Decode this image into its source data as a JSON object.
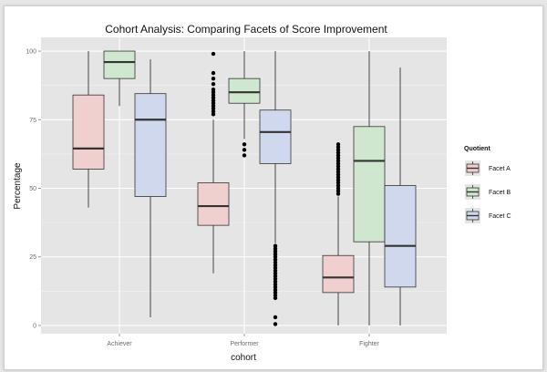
{
  "chart_data": {
    "type": "boxplot",
    "title": "Cohort Analysis: Comparing Facets of Score Improvement",
    "xlabel": "cohort",
    "ylabel": "Percentage",
    "ylim": [
      -3,
      105
    ],
    "yticks": [
      0,
      25,
      50,
      75,
      100
    ],
    "categories": [
      "Achiever",
      "Performer",
      "Fighter"
    ],
    "legend": {
      "title": "Quotient",
      "position": "right",
      "entries": [
        "Facet A",
        "Facet B",
        "Facet C"
      ]
    },
    "colors": {
      "panel": "#e5e5e5",
      "grid_major": "#ffffff",
      "grid_minor": "#f2f2f2",
      "line": "#333333",
      "fills": [
        "#f0cfcf",
        "#cfe6cf",
        "#cfd8ec"
      ]
    },
    "series": [
      {
        "name": "Facet A",
        "boxes": [
          {
            "category": "Achiever",
            "min": 43,
            "q1": 57,
            "median": 64.5,
            "q3": 84,
            "max": 100,
            "outliers": []
          },
          {
            "category": "Performer",
            "min": 19,
            "q1": 36.5,
            "median": 43.5,
            "q3": 52,
            "max": 75,
            "outliers": [
              77,
              78,
              79,
              80,
              81,
              82,
              83,
              84,
              85,
              86,
              88,
              90,
              92,
              99
            ]
          },
          {
            "category": "Fighter",
            "min": 0,
            "q1": 12,
            "median": 17.5,
            "q3": 25.5,
            "max": 47,
            "outliers": [
              48,
              49,
              50,
              51,
              52,
              53,
              54,
              55,
              56,
              57,
              58,
              59,
              60,
              61,
              62,
              63,
              64,
              65,
              66
            ]
          }
        ]
      },
      {
        "name": "Facet B",
        "boxes": [
          {
            "category": "Achiever",
            "min": 80,
            "q1": 90,
            "median": 96,
            "q3": 100,
            "max": 100,
            "outliers": []
          },
          {
            "category": "Performer",
            "min": 68,
            "q1": 81,
            "median": 85,
            "q3": 90,
            "max": 100,
            "outliers": [
              62,
              64,
              66
            ]
          },
          {
            "category": "Fighter",
            "min": 0,
            "q1": 30.5,
            "median": 60,
            "q3": 72.5,
            "max": 100,
            "outliers": []
          }
        ]
      },
      {
        "name": "Facet C",
        "boxes": [
          {
            "category": "Achiever",
            "min": 3,
            "q1": 47,
            "median": 75,
            "q3": 84.5,
            "max": 97,
            "outliers": []
          },
          {
            "category": "Performer",
            "min": 30,
            "q1": 59,
            "median": 70.5,
            "q3": 78.5,
            "max": 100,
            "outliers": [
              0.5,
              3,
              10,
              11,
              12,
              13,
              14,
              15,
              16,
              17,
              18,
              19,
              20,
              21,
              22,
              23,
              24,
              25,
              26,
              27,
              28,
              29
            ]
          },
          {
            "category": "Fighter",
            "min": 0,
            "q1": 14,
            "median": 29,
            "q3": 51,
            "max": 94,
            "outliers": []
          }
        ]
      }
    ]
  }
}
